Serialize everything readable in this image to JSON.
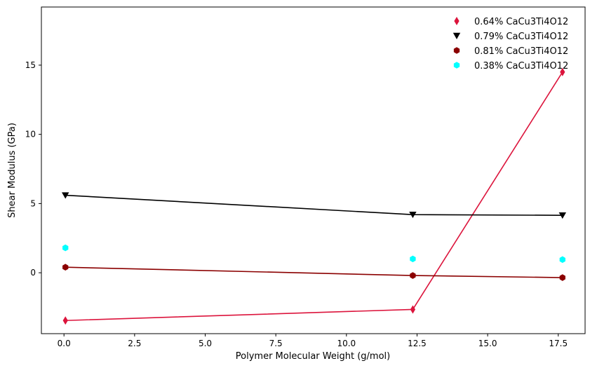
{
  "chart_data": {
    "type": "scatter",
    "title": "",
    "xlabel": "Polymer Molecular Weight (g/mol)",
    "ylabel": "Shear Modulus (GPa)",
    "xlim": [
      -0.8,
      18.45
    ],
    "ylim": [
      -4.4,
      19.2
    ],
    "x": [
      0.05,
      12.35,
      17.65
    ],
    "xticks": [
      0.0,
      2.5,
      5.0,
      7.5,
      10.0,
      12.5,
      15.0,
      17.5
    ],
    "xtick_labels": [
      "0.0",
      "2.5",
      "5.0",
      "7.5",
      "10.0",
      "12.5",
      "15.0",
      "17.5"
    ],
    "yticks": [
      0,
      5,
      10,
      15
    ],
    "ytick_labels": [
      "0",
      "5",
      "10",
      "15"
    ],
    "grid": false,
    "legend_position": "top-right",
    "series": [
      {
        "name": "0.64% CaCu3Ti4O12",
        "values": [
          -3.45,
          -2.65,
          14.5
        ],
        "color": "#dc143c",
        "marker": "thin-diamond",
        "line": true
      },
      {
        "name": "0.79% CaCu3Ti4O12",
        "values": [
          5.6,
          4.2,
          4.15
        ],
        "color": "#000000",
        "marker": "triangle-down",
        "line": true
      },
      {
        "name": "0.81% CaCu3Ti4O12",
        "values": [
          0.4,
          -0.2,
          -0.35
        ],
        "color": "#8b0000",
        "marker": "hexagon",
        "line": true
      },
      {
        "name": "0.38% CaCu3Ti4O12",
        "values": [
          1.8,
          1.0,
          0.95
        ],
        "color": "#00ffff",
        "marker": "hexagon",
        "line": false
      }
    ]
  }
}
